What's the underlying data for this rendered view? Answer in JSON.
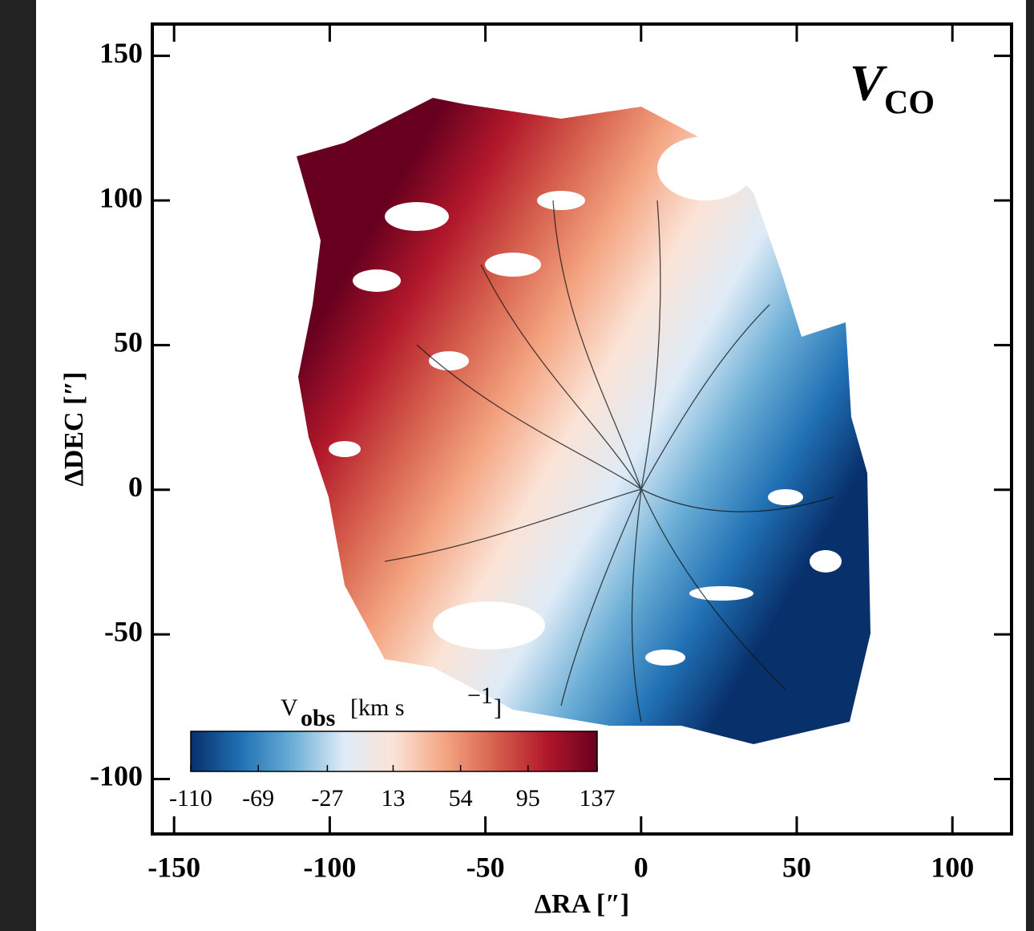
{
  "chart_data": {
    "type": "image",
    "title": {
      "main": "V",
      "sub": "CO"
    },
    "xlabel": "ΔRA [″]",
    "ylabel": "ΔDEC [″]",
    "xlim": [
      -157,
      119
    ],
    "ylim": [
      -119,
      161
    ],
    "xticks": [
      -150,
      -100,
      -50,
      0,
      50,
      100
    ],
    "yticks": [
      -100,
      -50,
      0,
      50,
      100,
      150
    ],
    "colorbar": {
      "label": {
        "main": "V",
        "sub": "obs",
        "unit": "[km s",
        "sup": "−1",
        "close": "]"
      },
      "range": [
        -110,
        137
      ],
      "ticks": [
        -110,
        -69,
        -27,
        13,
        54,
        95,
        137
      ],
      "colormap": [
        "#08306b",
        "#2171b5",
        "#6baed6",
        "#deebf7",
        "#fbe3d6",
        "#f4a582",
        "#d6604d",
        "#b2182b",
        "#67001f"
      ]
    }
  }
}
